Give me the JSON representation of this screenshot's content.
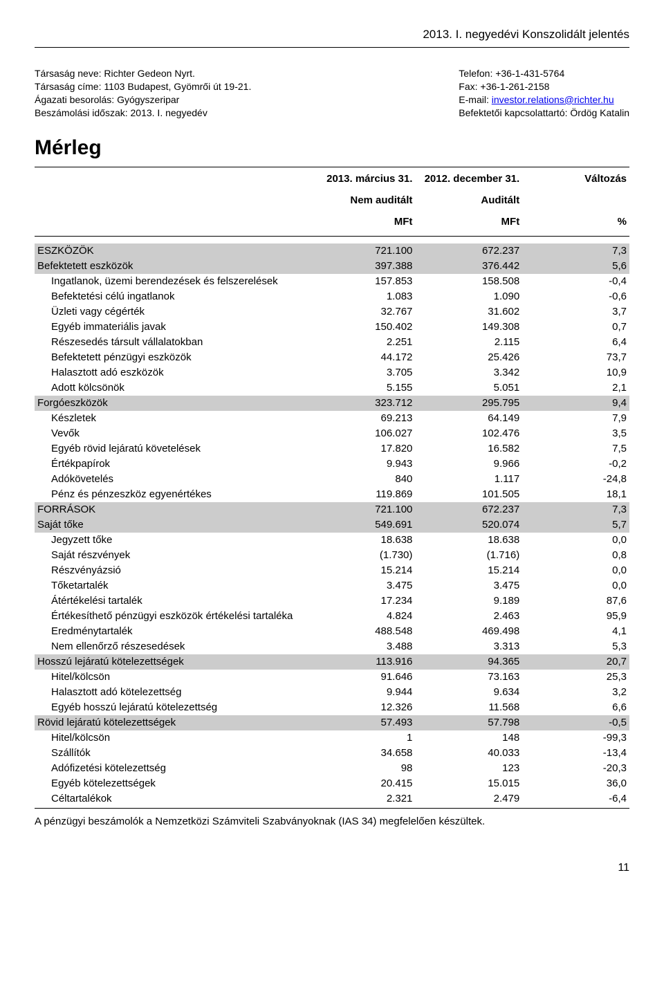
{
  "page_header": "2013. I. negyedévi Konszolidált jelentés",
  "company": {
    "left": {
      "l1": "Társaság neve: Richter Gedeon Nyrt.",
      "l2": "Társaság címe: 1103 Budapest, Gyömrői út 19-21.",
      "l3": "Ágazati besorolás: Gyógyszeripar",
      "l4": "Beszámolási időszak: 2013. I. negyedév"
    },
    "right": {
      "l1": "Telefon: +36-1-431-5764",
      "l2": "Fax: +36-1-261-2158",
      "l3_prefix": "E-mail: ",
      "l3_email": "investor.relations@richter.hu",
      "l4": "Befektetői kapcsolattartó: Ördög Katalin"
    }
  },
  "title": "Mérleg",
  "columns": {
    "c1a": "2013. március 31.",
    "c1b": "Nem auditált",
    "c1c": "MFt",
    "c2a": "2012. december 31.",
    "c2b": "Auditált",
    "c2c": "MFt",
    "c3a": "Változás",
    "c3c": "%"
  },
  "rows": [
    {
      "label": "ESZKÖZÖK",
      "v1": "721.100",
      "v2": "672.237",
      "v3": "7,3",
      "shade": true,
      "indent": 0
    },
    {
      "label": "Befektetett eszközök",
      "v1": "397.388",
      "v2": "376.442",
      "v3": "5,6",
      "shade": true,
      "indent": 0
    },
    {
      "label": "Ingatlanok, üzemi berendezések és felszerelések",
      "v1": "157.853",
      "v2": "158.508",
      "v3": "-0,4",
      "indent": 1
    },
    {
      "label": "Befektetési célú ingatlanok",
      "v1": "1.083",
      "v2": "1.090",
      "v3": "-0,6",
      "indent": 1
    },
    {
      "label": "Üzleti vagy cégérték",
      "v1": "32.767",
      "v2": "31.602",
      "v3": "3,7",
      "indent": 1
    },
    {
      "label": "Egyéb immateriális javak",
      "v1": "150.402",
      "v2": "149.308",
      "v3": "0,7",
      "indent": 1
    },
    {
      "label": "Részesedés társult vállalatokban",
      "v1": "2.251",
      "v2": "2.115",
      "v3": "6,4",
      "indent": 1
    },
    {
      "label": "Befektetett pénzügyi eszközök",
      "v1": "44.172",
      "v2": "25.426",
      "v3": "73,7",
      "indent": 1
    },
    {
      "label": "Halasztott adó eszközök",
      "v1": "3.705",
      "v2": "3.342",
      "v3": "10,9",
      "indent": 1
    },
    {
      "label": "Adott kölcsönök",
      "v1": "5.155",
      "v2": "5.051",
      "v3": "2,1",
      "indent": 1
    },
    {
      "label": "Forgóeszközök",
      "v1": "323.712",
      "v2": "295.795",
      "v3": "9,4",
      "shade": true,
      "indent": 0
    },
    {
      "label": "Készletek",
      "v1": "69.213",
      "v2": "64.149",
      "v3": "7,9",
      "indent": 1
    },
    {
      "label": "Vevők",
      "v1": "106.027",
      "v2": "102.476",
      "v3": "3,5",
      "indent": 1
    },
    {
      "label": "Egyéb rövid lejáratú követelések",
      "v1": "17.820",
      "v2": "16.582",
      "v3": "7,5",
      "indent": 1
    },
    {
      "label": "Értékpapírok",
      "v1": "9.943",
      "v2": "9.966",
      "v3": "-0,2",
      "indent": 1
    },
    {
      "label": "Adókövetelés",
      "v1": "840",
      "v2": "1.117",
      "v3": "-24,8",
      "indent": 1
    },
    {
      "label": "Pénz és pénzeszköz egyenértékes",
      "v1": "119.869",
      "v2": "101.505",
      "v3": "18,1",
      "indent": 1
    },
    {
      "label": "FORRÁSOK",
      "v1": "721.100",
      "v2": "672.237",
      "v3": "7,3",
      "shade": true,
      "indent": 0
    },
    {
      "label": "Saját tőke",
      "v1": "549.691",
      "v2": "520.074",
      "v3": "5,7",
      "shade": true,
      "indent": 0
    },
    {
      "label": "Jegyzett tőke",
      "v1": "18.638",
      "v2": "18.638",
      "v3": "0,0",
      "indent": 1
    },
    {
      "label": "Saját részvények",
      "v1": "(1.730)",
      "v2": "(1.716)",
      "v3": "0,8",
      "indent": 1
    },
    {
      "label": "Részvényázsió",
      "v1": "15.214",
      "v2": "15.214",
      "v3": "0,0",
      "indent": 1
    },
    {
      "label": "Tőketartalék",
      "v1": "3.475",
      "v2": "3.475",
      "v3": "0,0",
      "indent": 1
    },
    {
      "label": "Átértékelési tartalék",
      "v1": "17.234",
      "v2": "9.189",
      "v3": "87,6",
      "indent": 1
    },
    {
      "label": "Értékesíthető pénzügyi eszközök értékelési tartaléka",
      "v1": "4.824",
      "v2": "2.463",
      "v3": "95,9",
      "indent": 1
    },
    {
      "label": "Eredménytartalék",
      "v1": "488.548",
      "v2": "469.498",
      "v3": "4,1",
      "indent": 1
    },
    {
      "label": "Nem ellenőrző részesedések",
      "v1": "3.488",
      "v2": "3.313",
      "v3": "5,3",
      "indent": 1
    },
    {
      "label": "Hosszú lejáratú kötelezettségek",
      "v1": "113.916",
      "v2": "94.365",
      "v3": "20,7",
      "shade": true,
      "indent": 0
    },
    {
      "label": "Hitel/kölcsön",
      "v1": "91.646",
      "v2": "73.163",
      "v3": "25,3",
      "indent": 1
    },
    {
      "label": "Halasztott adó kötelezettség",
      "v1": "9.944",
      "v2": "9.634",
      "v3": "3,2",
      "indent": 1
    },
    {
      "label": "Egyéb hosszú lejáratú kötelezettség",
      "v1": "12.326",
      "v2": "11.568",
      "v3": "6,6",
      "indent": 1
    },
    {
      "label": "Rövid lejáratú kötelezettségek",
      "v1": "57.493",
      "v2": "57.798",
      "v3": "-0,5",
      "shade": true,
      "indent": 0
    },
    {
      "label": "Hitel/kölcsön",
      "v1": "1",
      "v2": "148",
      "v3": "-99,3",
      "indent": 1
    },
    {
      "label": "Szállítók",
      "v1": "34.658",
      "v2": "40.033",
      "v3": "-13,4",
      "indent": 1
    },
    {
      "label": "Adófizetési kötelezettség",
      "v1": "98",
      "v2": "123",
      "v3": "-20,3",
      "indent": 1
    },
    {
      "label": "Egyéb kötelezettségek",
      "v1": "20.415",
      "v2": "15.015",
      "v3": "36,0",
      "indent": 1
    },
    {
      "label": "Céltartalékok",
      "v1": "2.321",
      "v2": "2.479",
      "v3": "-6,4",
      "indent": 1
    }
  ],
  "footnote": "A pénzügyi beszámolók a Nemzetközi Számviteli Szabványoknak (IAS 34) megfelelően készültek.",
  "page_number": "11",
  "colors": {
    "shade": "#cccccc",
    "text": "#000000",
    "link": "#0000ee",
    "background": "#ffffff"
  }
}
